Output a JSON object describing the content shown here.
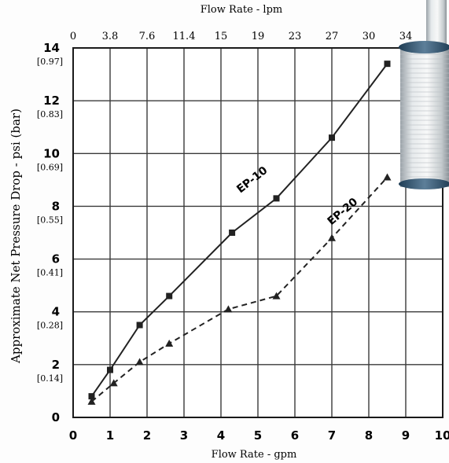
{
  "chart_data": {
    "type": "line",
    "xlabel": "Flow Rate - gpm",
    "x2label": "Flow Rate - lpm",
    "ylabel": "Approximate Net Pressure Drop - psi (bar)",
    "xlim": [
      0,
      10
    ],
    "ylim": [
      0,
      14
    ],
    "x_ticks": [
      "0",
      "1",
      "2",
      "3",
      "4",
      "5",
      "6",
      "7",
      "8",
      "9",
      "10"
    ],
    "x2_ticks": [
      "0",
      "3.8",
      "7.6",
      "11.4",
      "15",
      "19",
      "23",
      "27",
      "30",
      "34"
    ],
    "y_ticks": [
      "0",
      "2",
      "4",
      "6",
      "8",
      "10",
      "12",
      "14"
    ],
    "y_bar_ticks": [
      "[0.14]",
      "[0.28]",
      "[0.41]",
      "[0.55]",
      "[0.69]",
      "[0.83]",
      "[0.97]"
    ],
    "grid": true,
    "series": [
      {
        "name": "EP-10",
        "style": "solid",
        "marker": "square",
        "color": "#222222",
        "x": [
          0.5,
          1.0,
          1.8,
          2.6,
          4.3,
          5.5,
          7.0,
          8.5
        ],
        "y": [
          0.8,
          1.8,
          3.5,
          4.6,
          7.0,
          8.3,
          10.6,
          13.4
        ]
      },
      {
        "name": "EP-20",
        "style": "dashed",
        "marker": "triangle",
        "color": "#222222",
        "x": [
          0.5,
          1.1,
          1.8,
          2.6,
          4.2,
          5.5,
          7.0,
          8.5
        ],
        "y": [
          0.6,
          1.3,
          2.1,
          2.8,
          4.1,
          4.6,
          6.8,
          9.1
        ]
      }
    ]
  }
}
